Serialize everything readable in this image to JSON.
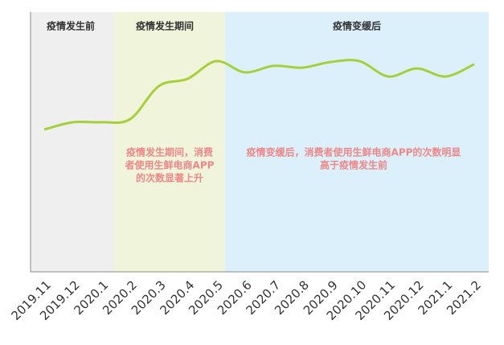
{
  "chart_data": {
    "type": "line",
    "categories": [
      "2019.11",
      "2019.12",
      "2020.1",
      "2020.2",
      "2020.3",
      "2020.4",
      "2020.5",
      "2020.6",
      "2020.7",
      "2020.8",
      "2020.9",
      "2020.10",
      "2020.11",
      "2020.12",
      "2021.1",
      "2021.2"
    ],
    "values": [
      54.8,
      57.6,
      57.6,
      58.8,
      71.5,
      74.3,
      81.1,
      76.8,
      79.3,
      78.6,
      80.8,
      81.1,
      75.2,
      78.3,
      75.2,
      79.9
    ],
    "color": "#a6cf3c",
    "ylim": [
      0,
      100
    ],
    "regions": [
      {
        "label": "疫情发生前",
        "color": "#efefef"
      },
      {
        "label": "疫情发生期间",
        "color": "#eff4da"
      },
      {
        "label": "疫情变缓后",
        "color": "#dcf0fb"
      }
    ],
    "annotations": [
      {
        "lines": [
          "疫情发生期间，消费",
          "者使用生鲜电商APP",
          "的次数显著上升"
        ],
        "color": "#ee8888"
      },
      {
        "lines": [
          "疫情变缓后，消费者使用生鲜电商APP的次数明显",
          "高于疫情发生前"
        ],
        "color": "#ee8888"
      }
    ]
  }
}
